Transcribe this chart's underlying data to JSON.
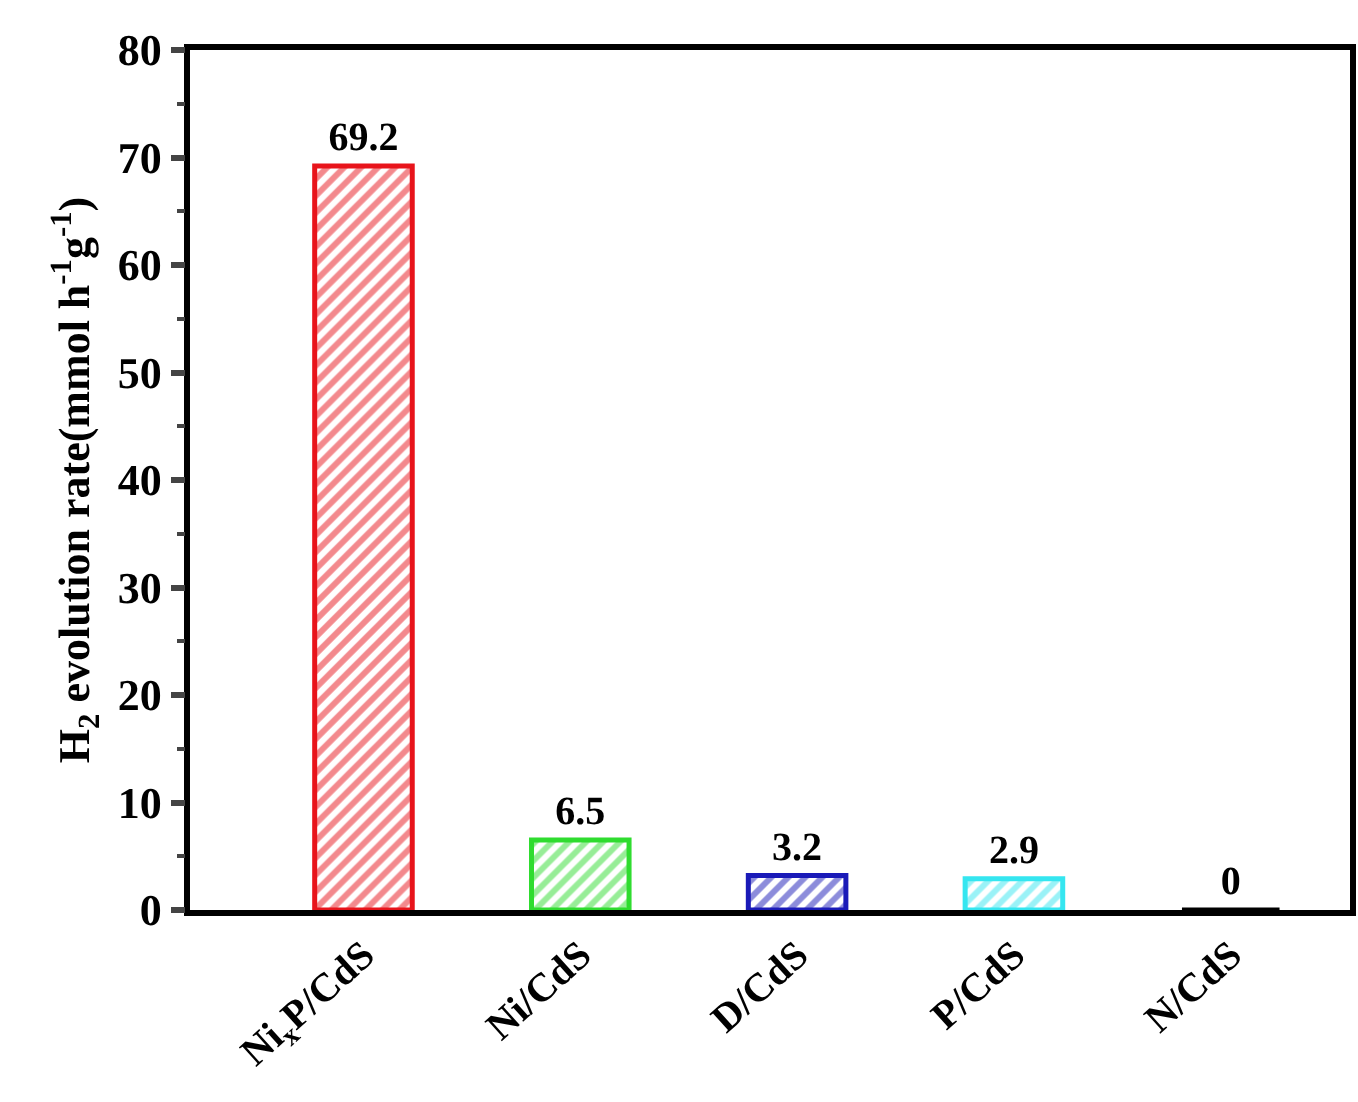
{
  "chart_data": {
    "type": "bar",
    "ylabel": "H$_{2}$ evolution rate(mmol h$^{-1}$g$^{-1}$)",
    "categories": [
      "Ni$_{x}$P/CdS",
      "Ni/CdS",
      "D/CdS",
      "P/CdS",
      "N/CdS"
    ],
    "values": [
      69.2,
      6.5,
      3.2,
      2.9,
      0
    ],
    "colors": [
      "#e8141b",
      "#2fdc2f",
      "#1a1ab8",
      "#35e6f0",
      "#000000"
    ],
    "ylim": [
      0,
      80
    ],
    "yticks": [
      0,
      10,
      20,
      30,
      40,
      50,
      60,
      70,
      80
    ],
    "data_labels": true
  }
}
